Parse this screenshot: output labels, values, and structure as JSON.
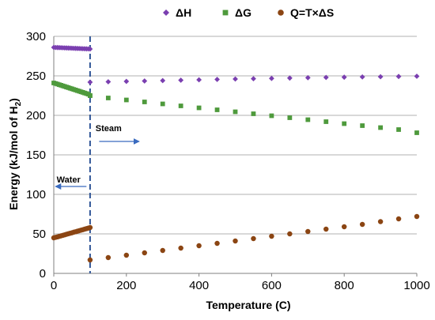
{
  "chart_data": {
    "type": "scatter",
    "xlabel": "Temperature (C)",
    "ylabel_main": "Energy (kJ/mol of H",
    "ylabel_sub": "2",
    "ylabel_close": ")",
    "xlim": [
      0,
      1000
    ],
    "ylim": [
      0,
      300
    ],
    "xticks": [
      0,
      200,
      400,
      600,
      800,
      1000
    ],
    "yticks": [
      0,
      50,
      100,
      150,
      200,
      250,
      300
    ],
    "grid": "horizontal",
    "legend_position": "top",
    "colors": {
      "dH": "#7a3fb0",
      "dG": "#4e9a3c",
      "Q": "#8b4513",
      "divider": "#2f5597",
      "arrow": "#3a6bbf",
      "grid": "#b0b0b0"
    },
    "series": [
      {
        "name": "ΔH",
        "marker": "diamond",
        "x": [
          0,
          5,
          10,
          15,
          20,
          25,
          30,
          35,
          40,
          45,
          50,
          55,
          60,
          65,
          70,
          75,
          80,
          85,
          90,
          95,
          100,
          100,
          150,
          200,
          250,
          300,
          350,
          400,
          450,
          500,
          550,
          600,
          650,
          700,
          750,
          800,
          850,
          900,
          950,
          1000
        ],
        "y": [
          286.0,
          285.9,
          285.8,
          285.7,
          285.6,
          285.5,
          285.4,
          285.3,
          285.2,
          285.1,
          285.0,
          284.9,
          284.8,
          284.7,
          284.6,
          284.5,
          284.4,
          284.3,
          284.2,
          284.1,
          284.0,
          242.0,
          242.5,
          243.0,
          243.5,
          244.0,
          244.5,
          245.0,
          245.5,
          246.0,
          246.4,
          246.8,
          247.2,
          247.6,
          248.0,
          248.3,
          248.6,
          248.9,
          249.2,
          249.5
        ]
      },
      {
        "name": "ΔG",
        "marker": "square",
        "x": [
          0,
          5,
          10,
          15,
          20,
          25,
          30,
          35,
          40,
          45,
          50,
          55,
          60,
          65,
          70,
          75,
          80,
          85,
          90,
          95,
          100,
          100,
          150,
          200,
          250,
          300,
          350,
          400,
          450,
          500,
          550,
          600,
          650,
          700,
          750,
          800,
          850,
          900,
          950,
          1000
        ],
        "y": [
          241.0,
          240.3,
          239.6,
          238.8,
          238.1,
          237.3,
          236.6,
          235.8,
          235.1,
          234.3,
          233.6,
          232.8,
          232.1,
          231.3,
          230.6,
          229.8,
          229.1,
          228.3,
          227.6,
          226.8,
          225.0,
          225.0,
          222.0,
          219.5,
          217.0,
          214.5,
          212.0,
          209.5,
          207.0,
          204.5,
          202.0,
          199.5,
          197.0,
          194.5,
          192.0,
          189.5,
          187.0,
          184.5,
          182.0,
          178.0
        ]
      },
      {
        "name": "Q=T×ΔS",
        "marker": "circle",
        "x": [
          0,
          5,
          10,
          15,
          20,
          25,
          30,
          35,
          40,
          45,
          50,
          55,
          60,
          65,
          70,
          75,
          80,
          85,
          90,
          95,
          100,
          100,
          150,
          200,
          250,
          300,
          350,
          400,
          450,
          500,
          550,
          600,
          650,
          700,
          750,
          800,
          850,
          900,
          950,
          1000
        ],
        "y": [
          45.0,
          45.6,
          46.2,
          46.9,
          47.5,
          48.2,
          48.8,
          49.5,
          50.1,
          50.8,
          51.4,
          52.1,
          52.7,
          53.4,
          54.0,
          54.7,
          55.3,
          56.0,
          56.6,
          57.3,
          58.0,
          17.0,
          20.0,
          23.0,
          26.0,
          29.0,
          32.0,
          35.0,
          38.0,
          41.0,
          44.0,
          47.0,
          50.0,
          53.0,
          56.0,
          59.0,
          62.0,
          65.5,
          69.0,
          72.0
        ]
      }
    ],
    "divider_x": 100,
    "annotations": [
      {
        "text": "Steam",
        "x": 115,
        "y": 180,
        "arrow_from_x": 125,
        "arrow_to_x": 235,
        "arrow_y": 167
      },
      {
        "text": "Water",
        "x": 8,
        "y": 115,
        "arrow_from_x": 90,
        "arrow_to_x": 5,
        "arrow_y": 110
      }
    ]
  }
}
